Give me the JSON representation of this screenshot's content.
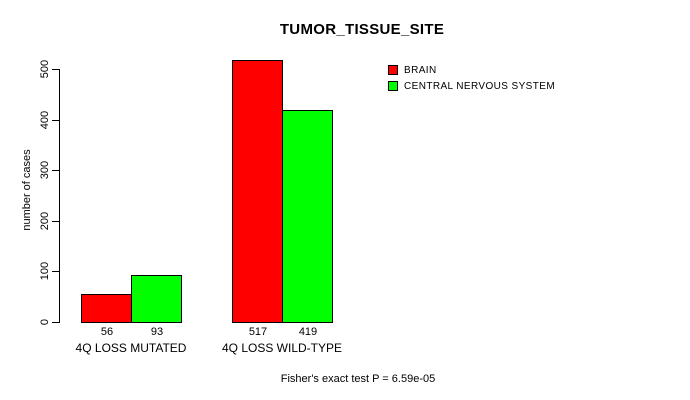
{
  "chart_data": {
    "type": "bar",
    "title": "TUMOR_TISSUE_SITE",
    "ylabel": "number of cases",
    "xlabel": "",
    "categories": [
      "4Q LOSS MUTATED",
      "4Q LOSS WILD-TYPE"
    ],
    "series": [
      {
        "name": "BRAIN",
        "color": "#ff0000",
        "values": [
          56,
          517
        ]
      },
      {
        "name": "CENTRAL NERVOUS SYSTEM",
        "color": "#00ff00",
        "values": [
          93,
          419
        ]
      }
    ],
    "bar_value_labels": [
      [
        "56",
        "517"
      ],
      [
        "93",
        "419"
      ]
    ],
    "yticks": [
      "0",
      "100",
      "200",
      "300",
      "400",
      "500"
    ],
    "ylim": [
      0,
      500
    ],
    "grid": false,
    "legend_position": "top-right",
    "bar_border_color": "#000000",
    "background_color": "#ffffff"
  },
  "footer": {
    "text": "Fisher's exact test P = 6.59e-05"
  }
}
